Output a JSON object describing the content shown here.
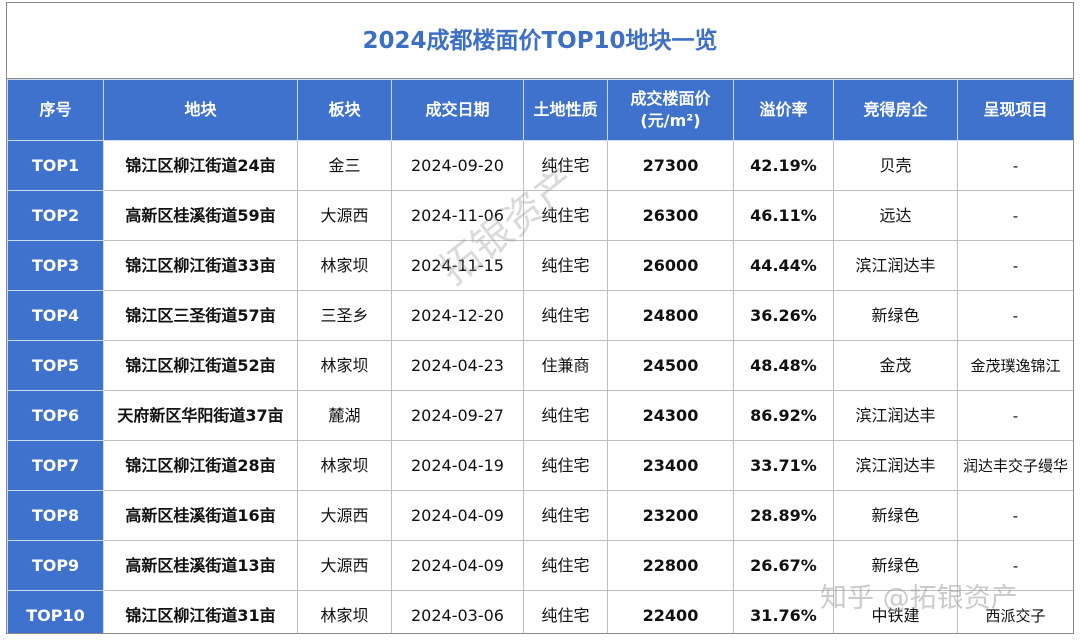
{
  "title": "2024成都楼面价TOP10地块一览",
  "headers": [
    {
      "label": "序号"
    },
    {
      "label": "地块"
    },
    {
      "label": "板块"
    },
    {
      "label": "成交日期"
    },
    {
      "label": "土地性质"
    },
    {
      "label": "成交楼面价",
      "label2": "(元/m²)"
    },
    {
      "label": "溢价率"
    },
    {
      "label": "竞得房企"
    },
    {
      "label": "呈现项目"
    }
  ],
  "rows": [
    {
      "rank": "TOP1",
      "plot": "锦江区柳江街道24亩",
      "area": "金三",
      "date": "2024-09-20",
      "land": "纯住宅",
      "price": "27300",
      "premium": "42.19%",
      "developer": "贝壳",
      "project": "-"
    },
    {
      "rank": "TOP2",
      "plot": "高新区桂溪街道59亩",
      "area": "大源西",
      "date": "2024-11-06",
      "land": "纯住宅",
      "price": "26300",
      "premium": "46.11%",
      "developer": "远达",
      "project": "-"
    },
    {
      "rank": "TOP3",
      "plot": "锦江区柳江街道33亩",
      "area": "林家坝",
      "date": "2024-11-15",
      "land": "纯住宅",
      "price": "26000",
      "premium": "44.44%",
      "developer": "滨江润达丰",
      "project": "-"
    },
    {
      "rank": "TOP4",
      "plot": "锦江区三圣街道57亩",
      "area": "三圣乡",
      "date": "2024-12-20",
      "land": "纯住宅",
      "price": "24800",
      "premium": "36.26%",
      "developer": "新绿色",
      "project": "-"
    },
    {
      "rank": "TOP5",
      "plot": "锦江区柳江街道52亩",
      "area": "林家坝",
      "date": "2024-04-23",
      "land": "住兼商",
      "price": "24500",
      "premium": "48.48%",
      "developer": "金茂",
      "project": "金茂璞逸锦江"
    },
    {
      "rank": "TOP6",
      "plot": "天府新区华阳街道37亩",
      "area": "麓湖",
      "date": "2024-09-27",
      "land": "纯住宅",
      "price": "24300",
      "premium": "86.92%",
      "developer": "滨江润达丰",
      "project": "-"
    },
    {
      "rank": "TOP7",
      "plot": "锦江区柳江街道28亩",
      "area": "林家坝",
      "date": "2024-04-19",
      "land": "纯住宅",
      "price": "23400",
      "premium": "33.71%",
      "developer": "滨江润达丰",
      "project": "润达丰交子缦华"
    },
    {
      "rank": "TOP8",
      "plot": "高新区桂溪街道16亩",
      "area": "大源西",
      "date": "2024-04-09",
      "land": "纯住宅",
      "price": "23200",
      "premium": "28.89%",
      "developer": "新绿色",
      "project": "-"
    },
    {
      "rank": "TOP9",
      "plot": "高新区桂溪街道13亩",
      "area": "大源西",
      "date": "2024-04-09",
      "land": "纯住宅",
      "price": "22800",
      "premium": "26.67%",
      "developer": "新绿色",
      "project": "-"
    },
    {
      "rank": "TOP10",
      "plot": "锦江区柳江街道31亩",
      "area": "林家坝",
      "date": "2024-03-06",
      "land": "纯住宅",
      "price": "22400",
      "premium": "31.76%",
      "developer": "中铁建",
      "project": "西派交子"
    }
  ],
  "watermark": "拓银资产",
  "brand": "知乎 @拓银资产"
}
